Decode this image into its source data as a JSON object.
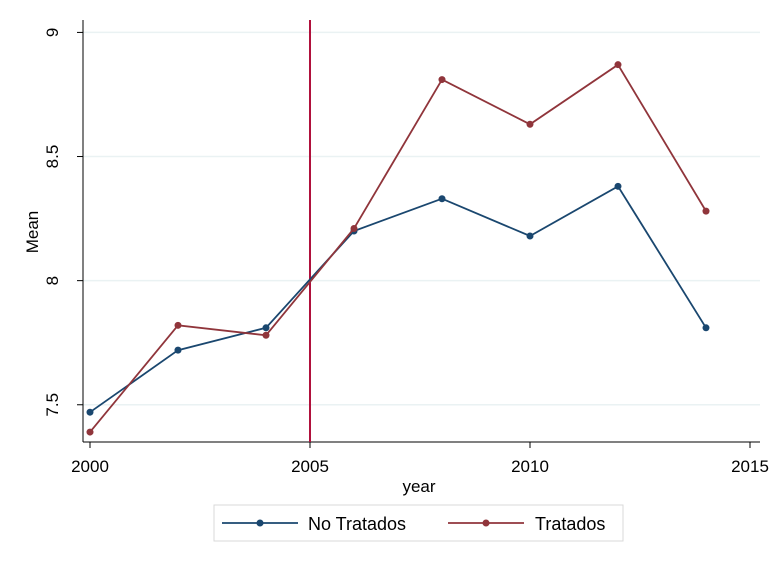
{
  "chart_data": {
    "type": "line",
    "title": "",
    "xlabel": "year",
    "ylabel": "Mean",
    "xlim": [
      2000,
      2015
    ],
    "ylim": [
      7.35,
      9.05
    ],
    "x_ticks": [
      2000,
      2005,
      2010,
      2015
    ],
    "x_tick_labels": [
      "2000",
      "2005",
      "2010",
      "2015"
    ],
    "y_ticks": [
      7.5,
      8,
      8.5,
      9
    ],
    "y_tick_labels": [
      "7.5",
      "8",
      "8.5",
      "9"
    ],
    "grid": true,
    "vertical_reference_line": {
      "x": 2005,
      "color": "#b0113c"
    },
    "legend_position": "bottom",
    "series": [
      {
        "name": "No Tratados",
        "color": "#1a476f",
        "x": [
          2000,
          2002,
          2004,
          2006,
          2008,
          2010,
          2012,
          2014
        ],
        "values": [
          7.47,
          7.72,
          7.81,
          8.2,
          8.33,
          8.18,
          8.38,
          7.81
        ]
      },
      {
        "name": "Tratados",
        "color": "#90353b",
        "x": [
          2000,
          2002,
          2004,
          2006,
          2008,
          2010,
          2012,
          2014
        ],
        "values": [
          7.39,
          7.82,
          7.78,
          8.21,
          8.81,
          8.63,
          8.87,
          8.28
        ]
      }
    ]
  }
}
